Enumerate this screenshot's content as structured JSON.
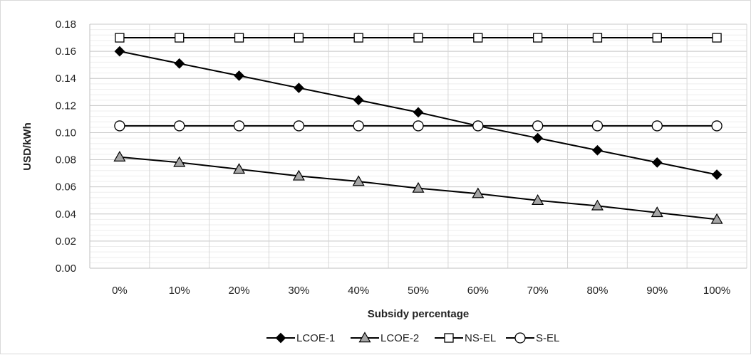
{
  "chart_data": {
    "type": "line",
    "categories": [
      "0%",
      "10%",
      "20%",
      "30%",
      "40%",
      "50%",
      "60%",
      "70%",
      "80%",
      "90%",
      "100%"
    ],
    "xlabel": "Subsidy percentage",
    "ylabel": "USD/kWh",
    "ylim": [
      0,
      0.18
    ],
    "yticks": [
      "0.00",
      "0.02",
      "0.04",
      "0.06",
      "0.08",
      "0.10",
      "0.12",
      "0.14",
      "0.16",
      "0.18"
    ],
    "grid": true,
    "legend_position": "bottom",
    "series": [
      {
        "name": "LCOE-1",
        "values": [
          0.16,
          0.151,
          0.142,
          0.133,
          0.124,
          0.115,
          0.105,
          0.096,
          0.087,
          0.078,
          0.069
        ],
        "marker": "diamond",
        "marker_color": "#000000"
      },
      {
        "name": "LCOE-2",
        "values": [
          0.082,
          0.078,
          0.073,
          0.068,
          0.064,
          0.059,
          0.055,
          0.05,
          0.046,
          0.041,
          0.036
        ],
        "marker": "triangle",
        "marker_color": "#a6a6a6"
      },
      {
        "name": "NS-EL",
        "values": [
          0.17,
          0.17,
          0.17,
          0.17,
          0.17,
          0.17,
          0.17,
          0.17,
          0.17,
          0.17,
          0.17
        ],
        "marker": "square",
        "marker_color": "#ffffff"
      },
      {
        "name": "S-EL",
        "values": [
          0.105,
          0.105,
          0.105,
          0.105,
          0.105,
          0.105,
          0.105,
          0.105,
          0.105,
          0.105,
          0.105
        ],
        "marker": "circle",
        "marker_color": "#ffffff"
      }
    ]
  }
}
